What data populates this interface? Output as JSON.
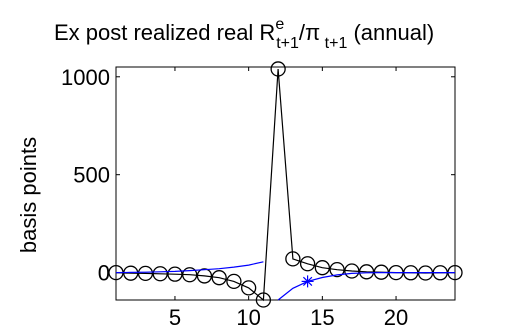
{
  "chart_data": {
    "type": "line",
    "title": {
      "main": "Ex post realized real R",
      "sup": "e",
      "sub1": "t+1",
      "slash": "/π",
      "sub2": " t+1",
      "tail": " (annual)"
    },
    "xlabel": "",
    "ylabel": "basis points",
    "xlim": [
      1,
      24
    ],
    "ylim": [
      -140,
      1050
    ],
    "xticks": [
      5,
      10,
      15,
      20
    ],
    "yticks": [
      0,
      500,
      1000
    ],
    "grid": false,
    "legend": "none",
    "series": [
      {
        "color": "#000000",
        "marker": "circle",
        "x": [
          1,
          2,
          3,
          4,
          5,
          6,
          7,
          8,
          9,
          10,
          11,
          12,
          13,
          14,
          15,
          16,
          17,
          18,
          19,
          20,
          21,
          22,
          23,
          24
        ],
        "values": [
          0,
          -3,
          -4,
          -6,
          -8,
          -11,
          -17,
          -26,
          -45,
          -78,
          -140,
          1040,
          70,
          45,
          25,
          15,
          8,
          4,
          2,
          0,
          -1,
          -2,
          -1,
          0
        ]
      },
      {
        "color": "#0000ff",
        "marker": "none",
        "x": [
          1,
          2,
          3,
          4,
          5,
          6,
          7,
          8,
          9,
          10,
          11
        ],
        "values": [
          0,
          1,
          2,
          4,
          6,
          10,
          15,
          20,
          28,
          38,
          55
        ]
      },
      {
        "color": "#0000ff",
        "marker": "star",
        "marker_index": 2,
        "x": [
          12,
          13,
          14,
          15,
          16,
          17,
          18,
          19,
          20,
          21,
          22,
          23,
          24
        ],
        "values": [
          -140,
          -80,
          -45,
          -25,
          -12,
          -4,
          -1,
          0,
          0,
          0,
          0,
          0,
          0
        ]
      }
    ]
  }
}
